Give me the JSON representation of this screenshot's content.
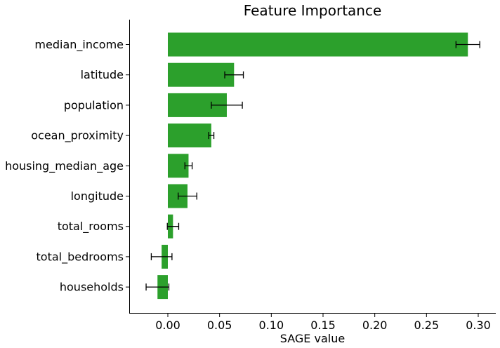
{
  "chart_data": {
    "type": "bar",
    "orientation": "horizontal",
    "title": "Feature Importance",
    "xlabel": "SAGE value",
    "ylabel": "",
    "xlim": [
      -0.037,
      0.318
    ],
    "x_ticks": [
      0.0,
      0.05,
      0.1,
      0.15,
      0.2,
      0.25,
      0.3
    ],
    "x_tick_labels": [
      "0.00",
      "0.05",
      "0.10",
      "0.15",
      "0.20",
      "0.25",
      "0.30"
    ],
    "categories": [
      "median_income",
      "latitude",
      "population",
      "ocean_proximity",
      "housing_median_age",
      "longitude",
      "total_rooms",
      "total_bedrooms",
      "households"
    ],
    "values": [
      0.29,
      0.064,
      0.057,
      0.042,
      0.02,
      0.019,
      0.005,
      -0.006,
      -0.01
    ],
    "errors": [
      0.0115,
      0.009,
      0.015,
      0.0025,
      0.0035,
      0.009,
      0.0055,
      0.01,
      0.011
    ],
    "bar_color": "#2ca02c",
    "error_color": "#000000",
    "grid": false,
    "legend": "none"
  }
}
